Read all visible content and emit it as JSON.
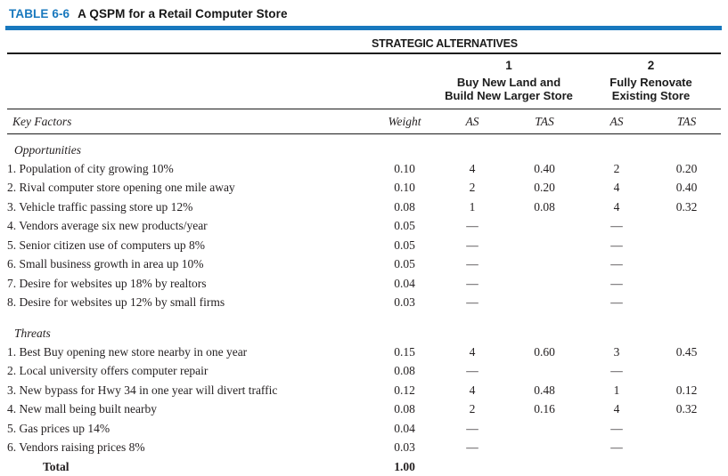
{
  "title": {
    "label": "TABLE 6-6",
    "text": "A QSPM for a Retail Computer Store"
  },
  "colors": {
    "accent": "#1878be",
    "text": "#231f20"
  },
  "table": {
    "group_header": "STRATEGIC ALTERNATIVES",
    "alternatives": [
      {
        "number": "1",
        "name": [
          "Buy New Land and",
          "Build New Larger Store"
        ]
      },
      {
        "number": "2",
        "name": [
          "Fully Renovate",
          "Existing Store"
        ]
      }
    ],
    "column_headers": {
      "key_factors": "Key Factors",
      "weight": "Weight",
      "as": "AS",
      "tas": "TAS"
    },
    "sections": [
      {
        "name": "Opportunities",
        "rows": [
          {
            "factor": "1. Population of city growing 10%",
            "weight": "0.10",
            "as1": "4",
            "tas1": "0.40",
            "as2": "2",
            "tas2": "0.20"
          },
          {
            "factor": "2. Rival computer store opening one mile away",
            "weight": "0.10",
            "as1": "2",
            "tas1": "0.20",
            "as2": "4",
            "tas2": "0.40"
          },
          {
            "factor": "3. Vehicle traffic passing store up 12%",
            "weight": "0.08",
            "as1": "1",
            "tas1": "0.08",
            "as2": "4",
            "tas2": "0.32"
          },
          {
            "factor": "4. Vendors average six new products/year",
            "weight": "0.05",
            "as1": "—",
            "tas1": "",
            "as2": "—",
            "tas2": ""
          },
          {
            "factor": "5. Senior citizen use of computers up 8%",
            "weight": "0.05",
            "as1": "—",
            "tas1": "",
            "as2": "—",
            "tas2": ""
          },
          {
            "factor": "6. Small business growth in area up 10%",
            "weight": "0.05",
            "as1": "—",
            "tas1": "",
            "as2": "—",
            "tas2": ""
          },
          {
            "factor": "7. Desire for websites up 18% by realtors",
            "weight": "0.04",
            "as1": "—",
            "tas1": "",
            "as2": "—",
            "tas2": ""
          },
          {
            "factor": "8. Desire for websites up 12% by small firms",
            "weight": "0.03",
            "as1": "—",
            "tas1": "",
            "as2": "—",
            "tas2": ""
          }
        ]
      },
      {
        "name": "Threats",
        "rows": [
          {
            "factor": "1. Best Buy opening new store nearby in one year",
            "weight": "0.15",
            "as1": "4",
            "tas1": "0.60",
            "as2": "3",
            "tas2": "0.45"
          },
          {
            "factor": "2. Local university offers computer repair",
            "weight": "0.08",
            "as1": "—",
            "tas1": "",
            "as2": "—",
            "tas2": ""
          },
          {
            "factor": "3. New bypass for Hwy 34 in one year will divert traffic",
            "weight": "0.12",
            "as1": "4",
            "tas1": "0.48",
            "as2": "1",
            "tas2": "0.12"
          },
          {
            "factor": "4. New mall being built nearby",
            "weight": "0.08",
            "as1": "2",
            "tas1": "0.16",
            "as2": "4",
            "tas2": "0.32"
          },
          {
            "factor": "5. Gas prices up 14%",
            "weight": "0.04",
            "as1": "—",
            "tas1": "",
            "as2": "—",
            "tas2": ""
          },
          {
            "factor": "6. Vendors raising prices 8%",
            "weight": "0.03",
            "as1": "—",
            "tas1": "",
            "as2": "—",
            "tas2": ""
          }
        ]
      }
    ],
    "total": {
      "label": "Total",
      "weight": "1.00"
    }
  }
}
